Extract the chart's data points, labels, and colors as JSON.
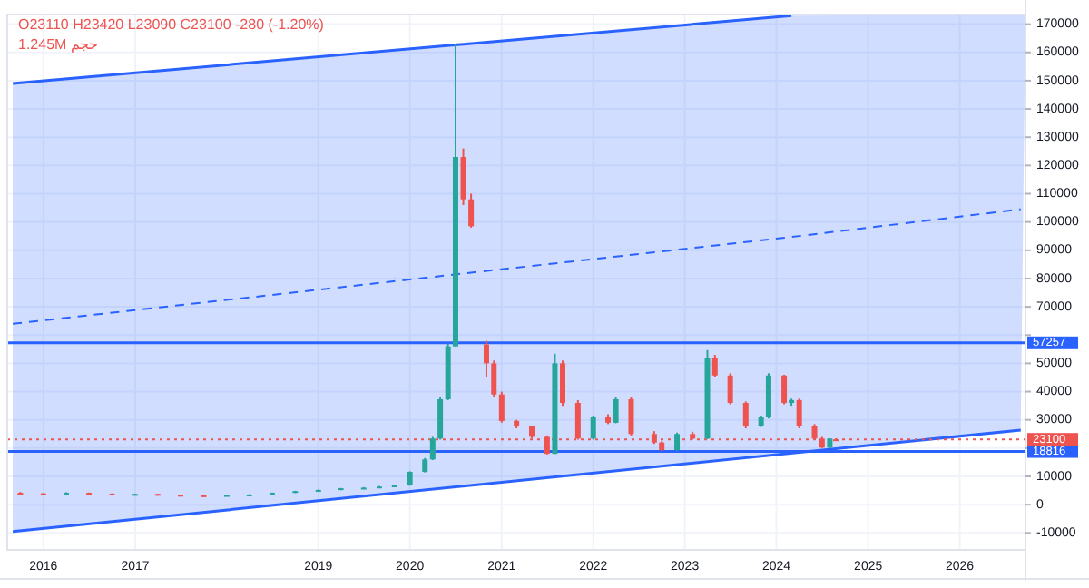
{
  "chart_data": {
    "type": "candlestick",
    "annotations": [
      "O23110 H23420 L23090 C23100 -280 (-1.20%)",
      "حجم 1.245M"
    ],
    "x": [
      "2015-10",
      "2016-01",
      "2016-04",
      "2016-07",
      "2016-10",
      "2017-01",
      "2017-04",
      "2017-07",
      "2017-10",
      "2018-01",
      "2018-04",
      "2018-07",
      "2018-10",
      "2019-01",
      "2019-04",
      "2019-07",
      "2019-09",
      "2019-11",
      "2020-01",
      "2020-03",
      "2020-04",
      "2020-05",
      "2020-06",
      "2020-07",
      "2020-08",
      "2020-09",
      "2020-11",
      "2020-12",
      "2021-01",
      "2021-03",
      "2021-05",
      "2021-07",
      "2021-08",
      "2021-09",
      "2021-11",
      "2022-01",
      "2022-03",
      "2022-04",
      "2022-06",
      "2022-09",
      "2022-10",
      "2022-12",
      "2023-02",
      "2023-04",
      "2023-05",
      "2023-07",
      "2023-09",
      "2023-11",
      "2023-12",
      "2024-02",
      "2024-03",
      "2024-04",
      "2024-06",
      "2024-07",
      "2024-08-01",
      "2024-08-25"
    ],
    "ohlc": [
      [
        4200,
        4500,
        3900,
        4000
      ],
      [
        4000,
        4100,
        3700,
        3800
      ],
      [
        3800,
        4400,
        3700,
        4200
      ],
      [
        4200,
        4300,
        3800,
        3900
      ],
      [
        3900,
        4000,
        3500,
        3600
      ],
      [
        3600,
        3900,
        3500,
        3800
      ],
      [
        3800,
        3900,
        3400,
        3500
      ],
      [
        3500,
        3600,
        3200,
        3300
      ],
      [
        3300,
        3400,
        3100,
        3200
      ],
      [
        3200,
        3500,
        3100,
        3400
      ],
      [
        3400,
        3700,
        3300,
        3600
      ],
      [
        3600,
        4300,
        3500,
        4200
      ],
      [
        4200,
        4900,
        4100,
        4800
      ],
      [
        4800,
        5400,
        4700,
        5200
      ],
      [
        5200,
        5900,
        5100,
        5800
      ],
      [
        5800,
        6200,
        5600,
        6000
      ],
      [
        6000,
        6600,
        5900,
        6400
      ],
      [
        6400,
        7000,
        6300,
        6800
      ],
      [
        6800,
        11800,
        6700,
        11600
      ],
      [
        11600,
        16500,
        11400,
        16000
      ],
      [
        16000,
        24000,
        15800,
        23400
      ],
      [
        23400,
        38000,
        23000,
        37300
      ],
      [
        37300,
        57000,
        37000,
        56000
      ],
      [
        56000,
        163000,
        56000,
        123000
      ],
      [
        123000,
        126000,
        106000,
        108000
      ],
      [
        108000,
        110000,
        98000,
        98500
      ],
      [
        56700,
        58000,
        45000,
        50000
      ],
      [
        50000,
        51000,
        38000,
        39000
      ],
      [
        39000,
        40000,
        29000,
        29600
      ],
      [
        29600,
        30000,
        27000,
        27700
      ],
      [
        27700,
        28000,
        23500,
        24000
      ],
      [
        24000,
        24500,
        17800,
        18000
      ],
      [
        18000,
        53400,
        17900,
        50000
      ],
      [
        50000,
        51000,
        35000,
        36000
      ],
      [
        36000,
        37000,
        23000,
        23400
      ],
      [
        23400,
        31500,
        23000,
        30900
      ],
      [
        30900,
        32000,
        28500,
        29000
      ],
      [
        29000,
        38000,
        28800,
        37300
      ],
      [
        37300,
        38000,
        24500,
        25000
      ],
      [
        25000,
        26000,
        21500,
        22000
      ],
      [
        22000,
        22500,
        19000,
        19300
      ],
      [
        19300,
        25500,
        19000,
        25000
      ],
      [
        25000,
        25800,
        23000,
        23400
      ],
      [
        23400,
        54700,
        23200,
        52000
      ],
      [
        52000,
        53000,
        45000,
        45700
      ],
      [
        45700,
        46500,
        35500,
        36000
      ],
      [
        36000,
        36500,
        27000,
        27700
      ],
      [
        27700,
        31500,
        27500,
        30900
      ],
      [
        30900,
        46500,
        30500,
        45700
      ],
      [
        45700,
        46000,
        35500,
        36000
      ],
      [
        36000,
        37500,
        35000,
        37000
      ],
      [
        37000,
        37500,
        27000,
        27700
      ],
      [
        27700,
        28500,
        23000,
        23400
      ],
      [
        23400,
        24000,
        20000,
        20200
      ],
      [
        20200,
        23500,
        20000,
        23390
      ],
      [
        23110,
        23420,
        23090,
        23100
      ]
    ],
    "colors": [
      "#ef5350",
      "#ef5350",
      "#26a69a",
      "#ef5350",
      "#ef5350",
      "#26a69a",
      "#ef5350",
      "#ef5350",
      "#ef5350",
      "#26a69a",
      "#26a69a",
      "#26a69a",
      "#26a69a",
      "#26a69a",
      "#26a69a",
      "#26a69a",
      "#26a69a",
      "#26a69a",
      "#26a69a",
      "#26a69a",
      "#26a69a",
      "#26a69a",
      "#26a69a",
      "#26a69a",
      "#ef5350",
      "#ef5350",
      "#ef5350",
      "#ef5350",
      "#ef5350",
      "#ef5350",
      "#ef5350",
      "#ef5350",
      "#26a69a",
      "#ef5350",
      "#ef5350",
      "#26a69a",
      "#ef5350",
      "#26a69a",
      "#ef5350",
      "#ef5350",
      "#ef5350",
      "#26a69a",
      "#ef5350",
      "#26a69a",
      "#ef5350",
      "#ef5350",
      "#ef5350",
      "#26a69a",
      "#26a69a",
      "#ef5350",
      "#26a69a",
      "#ef5350",
      "#ef5350",
      "#ef5350",
      "#26a69a",
      "#ef5350"
    ],
    "series": [
      {
        "type": "line",
        "color": "#2962ff",
        "line_style": "dashed",
        "x": [
          "2015-09",
          "2024-03",
          "2026-09-01"
        ],
        "values": [
          64000,
          94700,
          104500
        ]
      },
      {
        "type": "line",
        "color": "#2962ff",
        "line_style": "solid",
        "x": [
          "2015-09",
          "2024-03"
        ],
        "values": [
          149000,
          173000
        ]
      },
      {
        "type": "line",
        "color": "#2962ff",
        "line_style": "solid",
        "x": [
          "2015-09",
          "2026-09-01"
        ],
        "values": [
          -9500,
          26400
        ]
      }
    ],
    "ref_lines": [
      {
        "axis": "y",
        "value": 57257,
        "label": "57257",
        "color": "#2962ff",
        "line_style": "solid"
      },
      {
        "axis": "y",
        "value": 18816,
        "label": "18816",
        "color": "#2962ff",
        "line_style": "solid"
      },
      {
        "axis": "y",
        "value": 23100,
        "label": "23100",
        "color": "#ef5350",
        "line_style": "dotted"
      }
    ],
    "xlim": [
      "2015-08-10",
      "2026-09-20"
    ],
    "xticks": [
      "2016",
      "2017",
      "2019",
      "2020",
      "2021",
      "2022",
      "2023",
      "2024",
      "2025",
      "2026"
    ],
    "ylim": [
      -16000,
      173400
    ],
    "yticks": [
      -10000,
      0,
      10000,
      {
        "value": 20000,
        "label": null
      },
      30000,
      40000,
      50000,
      {
        "value": 60000,
        "label": null
      },
      70000,
      80000,
      90000,
      100000,
      110000,
      120000,
      130000,
      140000,
      150000,
      160000,
      170000
    ],
    "grid": true
  }
}
